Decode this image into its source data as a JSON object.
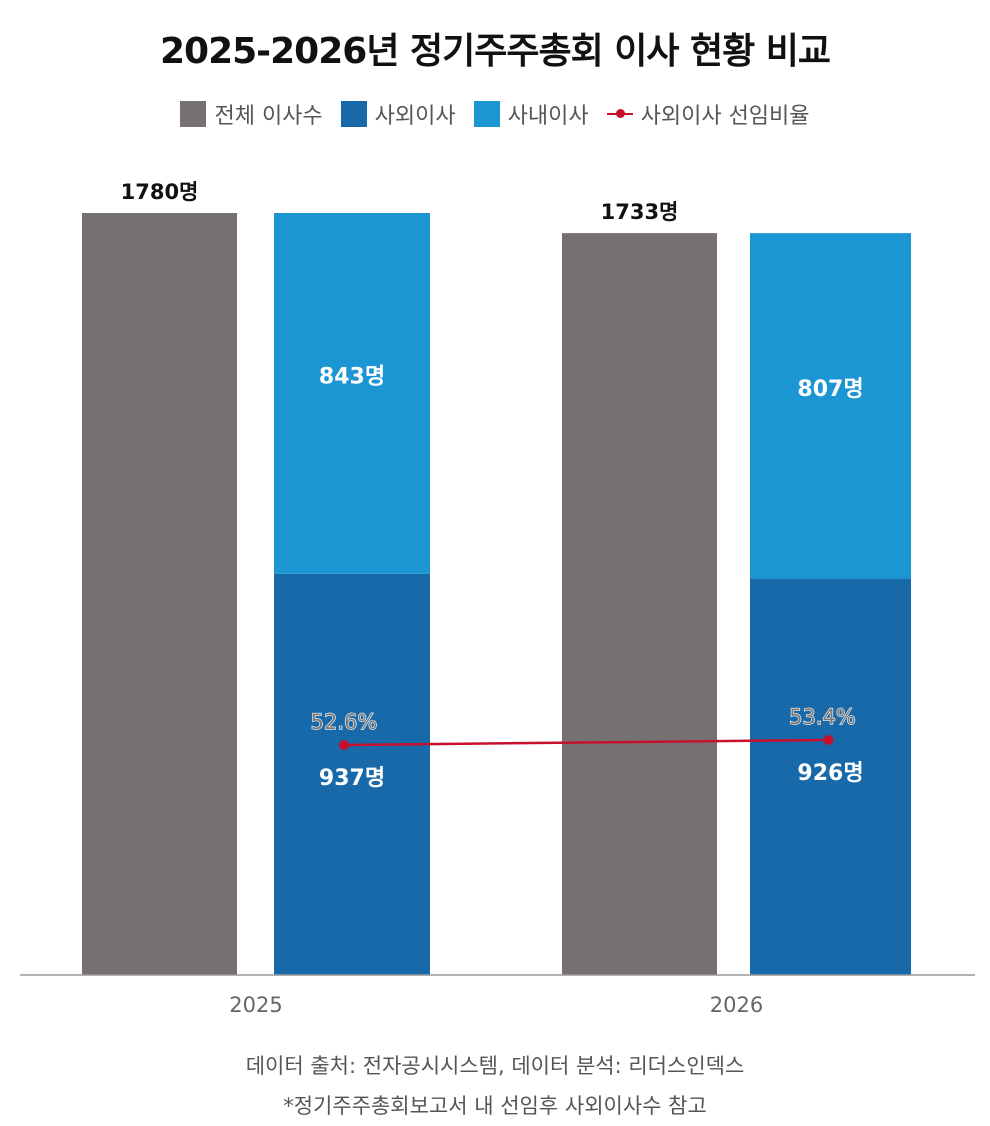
{
  "chart_data": {
    "type": "bar",
    "title": "2025-2026년 정기주주총회 이사 현황 비교",
    "categories": [
      "2025",
      "2026"
    ],
    "series": [
      {
        "name": "전체 이사수",
        "values": [
          1780,
          1733
        ],
        "labels": [
          "1780명",
          "1733명"
        ],
        "color": "#767170"
      },
      {
        "name": "사외이사",
        "values": [
          937,
          926
        ],
        "labels": [
          "937명",
          "926명"
        ],
        "color": "#1769a9",
        "stack": "b"
      },
      {
        "name": "사내이사",
        "values": [
          843,
          807
        ],
        "labels": [
          "843명",
          "807명"
        ],
        "color": "#1c96d3",
        "stack": "b"
      },
      {
        "name": "사외이사 선임비율",
        "type": "line",
        "values": [
          52.6,
          53.4
        ],
        "labels": [
          "52.6%",
          "53.4%"
        ],
        "color": "#c8102e"
      }
    ],
    "ylim": [
      0,
      1780
    ],
    "grid": false,
    "legend_position": "top-center"
  },
  "footnotes": [
    "데이터 출처: 전자공시시스템, 데이터 분석: 리더스인덱스",
    "*정기주주총회보고서 내 선임후 사외이사수 참고"
  ]
}
